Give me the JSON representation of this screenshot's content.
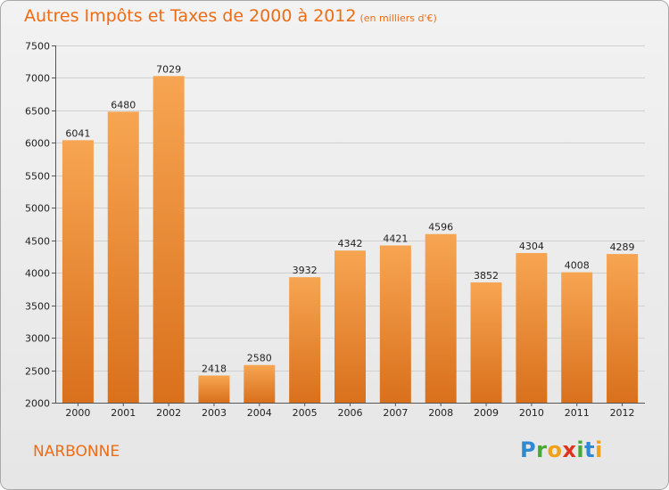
{
  "header": {
    "title": "Autres Impôts et Taxes de 2000 à 2012",
    "subtitle": "(en milliers d'€)"
  },
  "footer": {
    "city": "NARBONNE",
    "brand_letters": [
      "P",
      "r",
      "o",
      "x",
      "i",
      "t",
      "i"
    ],
    "brand_colors": [
      "#2f8ad6",
      "#49a834",
      "#f0a01a",
      "#e0331f",
      "#49a834",
      "#2f8ad6",
      "#f0a01a"
    ]
  },
  "colors": {
    "bar_light": "#f7a552",
    "bar_dark": "#d9701c",
    "text": "#ef6c14"
  },
  "chart_data": {
    "type": "bar",
    "categories": [
      "2000",
      "2001",
      "2002",
      "2003",
      "2004",
      "2005",
      "2006",
      "2007",
      "2008",
      "2009",
      "2010",
      "2011",
      "2012"
    ],
    "values": [
      6041,
      6480,
      7029,
      2418,
      2580,
      3932,
      4342,
      4421,
      4596,
      3852,
      4304,
      4008,
      4289
    ],
    "ylim": [
      2000,
      7500
    ],
    "yticks": [
      2000,
      2500,
      3000,
      3500,
      4000,
      4500,
      5000,
      5500,
      6000,
      6500,
      7000,
      7500
    ],
    "grid": true,
    "title": "Autres Impôts et Taxes de 2000 à 2012",
    "xlabel": "",
    "ylabel": ""
  }
}
